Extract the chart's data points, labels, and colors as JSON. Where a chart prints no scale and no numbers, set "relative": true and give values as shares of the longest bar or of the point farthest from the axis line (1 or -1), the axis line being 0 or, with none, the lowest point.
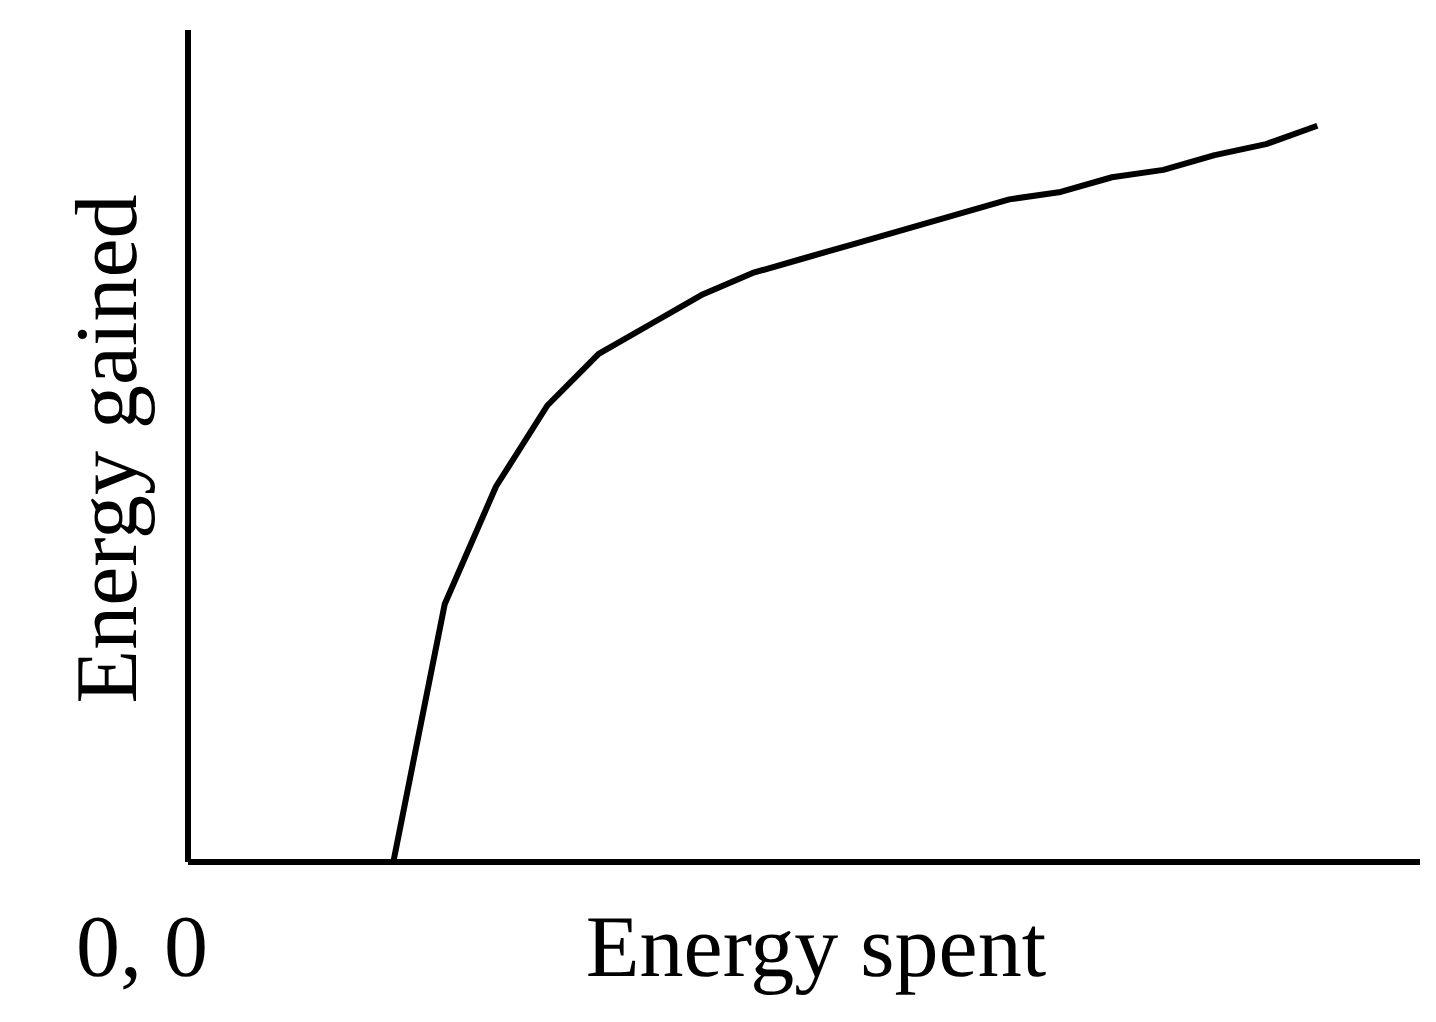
{
  "chart_data": {
    "type": "line",
    "relative": true,
    "xlabel": "Energy spent",
    "ylabel": "Energy gained",
    "annotations": [
      "0, 0"
    ],
    "categories": [
      null,
      null,
      null,
      null,
      null,
      null,
      null,
      null,
      null,
      null,
      null,
      null,
      null,
      null,
      null,
      null,
      null,
      null,
      null,
      null,
      null,
      null,
      null,
      null,
      null
    ],
    "series": [
      {
        "color": "#000000",
        "values": [
          null,
          null,
          null,
          null,
          0,
          0.35,
          0.51,
          0.62,
          0.69,
          0.73,
          0.77,
          0.8,
          0.82,
          0.84,
          0.86,
          0.88,
          0.9,
          0.91,
          0.93,
          0.94,
          0.96,
          0.975,
          1,
          null,
          null
        ]
      }
    ],
    "marker": "none",
    "grid": false
  }
}
